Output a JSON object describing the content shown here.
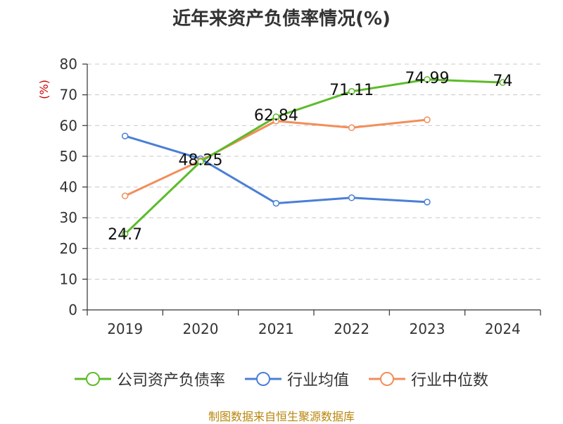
{
  "chart_data": {
    "type": "line",
    "title": "近年来资产负债率情况(%)",
    "ylabel": "(%)",
    "xlabel": "",
    "categories": [
      "2019",
      "2020",
      "2021",
      "2022",
      "2023",
      "2024"
    ],
    "ylim": [
      0,
      80
    ],
    "yticks": [
      0,
      10,
      20,
      30,
      40,
      50,
      60,
      70,
      80
    ],
    "grid": true,
    "legend_position": "bottom",
    "series": [
      {
        "name": "公司资产负债率",
        "color": "#5dbb2a",
        "values": [
          24.7,
          48.25,
          62.84,
          71.11,
          74.99,
          74
        ],
        "labels": [
          "24.7",
          "48.25",
          "62.84",
          "71.11",
          "74.99",
          "74"
        ]
      },
      {
        "name": "行业均值",
        "color": "#4a7fd6",
        "values": [
          56.6,
          49.2,
          34.7,
          36.5,
          35.1,
          null
        ]
      },
      {
        "name": "行业中位数",
        "color": "#f28e5a",
        "values": [
          37.1,
          48.6,
          61.5,
          59.3,
          61.9,
          null
        ]
      }
    ]
  },
  "source": "制图数据来自恒生聚源数据库"
}
